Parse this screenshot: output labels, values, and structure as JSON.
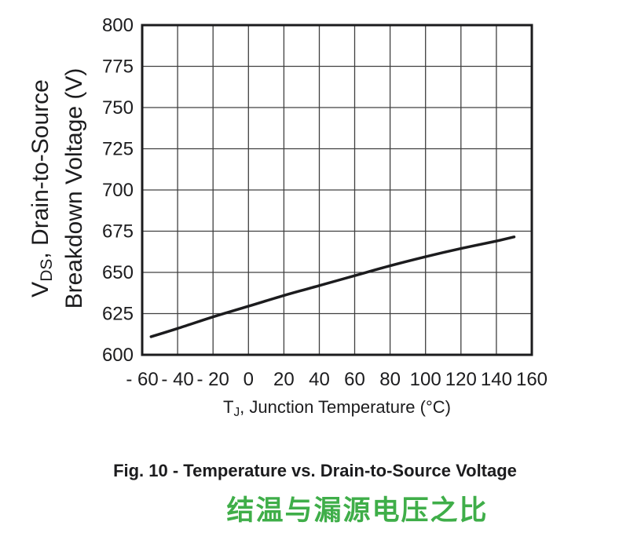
{
  "figure": {
    "caption": "Fig. 10 - Temperature vs. Drain-to-Source Voltage",
    "caption_cn": "结温与漏源电压之比",
    "colors": {
      "caption_cn": "#3fae49",
      "ink": "#1c1c1e",
      "grid": "#404040"
    }
  },
  "chart_data": {
    "type": "line",
    "title": "Temperature vs. Drain-to-Source Voltage",
    "xlabel": "TJ, Junction Temperature (°C)",
    "xlabel_parts": {
      "prefix": "T",
      "sub": "J",
      "rest": ", Junction Temperature (°C)"
    },
    "ylabel": "VDS, Drain-to-Source Breakdown Voltage (V)",
    "ylabel_lines": [
      {
        "prefix": "V",
        "sub": "DS",
        "rest": ", Drain-to-Source"
      },
      {
        "text": "Breakdown Voltage (V)"
      }
    ],
    "xlim": [
      -60,
      160
    ],
    "ylim": [
      600,
      800
    ],
    "xticks": {
      "values": [
        -60,
        -40,
        -20,
        0,
        20,
        40,
        60,
        80,
        100,
        120,
        140,
        160
      ],
      "labels": [
        "- 60",
        "- 40",
        "- 20",
        "0",
        "20",
        "40",
        "60",
        "80",
        "100",
        "120",
        "140",
        "160"
      ]
    },
    "yticks": {
      "values": [
        600,
        625,
        650,
        675,
        700,
        725,
        750,
        775,
        800
      ],
      "labels": [
        "600",
        "625",
        "650",
        "675",
        "700",
        "725",
        "750",
        "775",
        "800"
      ]
    },
    "grid": true,
    "legend": null,
    "series": [
      {
        "name": "drain-to-source-breakdown-voltage",
        "x": [
          -55,
          -40,
          -20,
          0,
          20,
          40,
          60,
          80,
          100,
          120,
          140,
          150
        ],
        "y": [
          611,
          616,
          623,
          629.5,
          636,
          642,
          648,
          654,
          659.5,
          664.5,
          669,
          671.5
        ]
      }
    ]
  }
}
